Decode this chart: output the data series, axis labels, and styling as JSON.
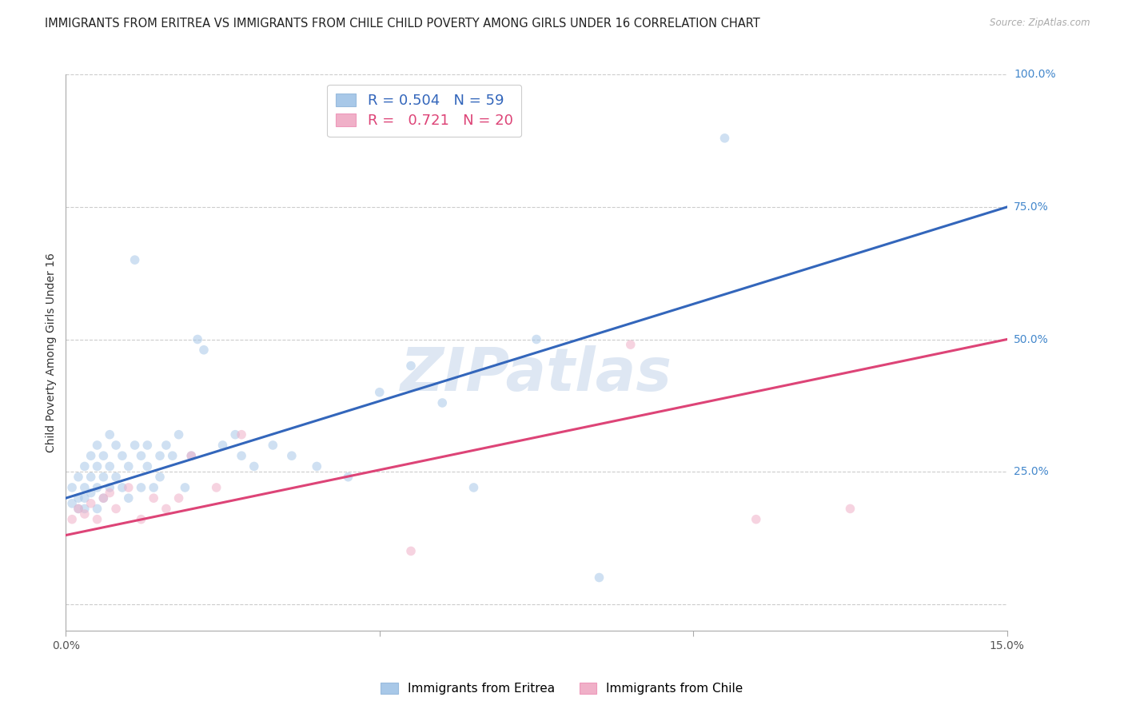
{
  "title": "IMMIGRANTS FROM ERITREA VS IMMIGRANTS FROM CHILE CHILD POVERTY AMONG GIRLS UNDER 16 CORRELATION CHART",
  "source": "Source: ZipAtlas.com",
  "ylabel": "Child Poverty Among Girls Under 16",
  "xlim": [
    0.0,
    0.15
  ],
  "ylim": [
    -0.05,
    1.0
  ],
  "xticks": [
    0.0,
    0.05,
    0.1,
    0.15
  ],
  "xticklabels": [
    "0.0%",
    "",
    "",
    "15.0%"
  ],
  "ytick_vals": [
    0.0,
    0.25,
    0.5,
    0.75,
    1.0
  ],
  "ytick_labels": [
    "",
    "25.0%",
    "50.0%",
    "75.0%",
    "100.0%"
  ],
  "background_color": "#ffffff",
  "watermark": "ZIPatlas",
  "grid_color": "#cccccc",
  "series": [
    {
      "name": "Immigrants from Eritrea",
      "R": 0.504,
      "N": 59,
      "color": "#a8c8e8",
      "line_color": "#3366bb",
      "x": [
        0.001,
        0.001,
        0.002,
        0.002,
        0.002,
        0.003,
        0.003,
        0.003,
        0.003,
        0.004,
        0.004,
        0.004,
        0.005,
        0.005,
        0.005,
        0.005,
        0.006,
        0.006,
        0.006,
        0.007,
        0.007,
        0.007,
        0.008,
        0.008,
        0.009,
        0.009,
        0.01,
        0.01,
        0.011,
        0.011,
        0.012,
        0.012,
        0.013,
        0.013,
        0.014,
        0.015,
        0.015,
        0.016,
        0.017,
        0.018,
        0.019,
        0.02,
        0.021,
        0.022,
        0.025,
        0.027,
        0.028,
        0.03,
        0.033,
        0.036,
        0.04,
        0.045,
        0.05,
        0.055,
        0.06,
        0.065,
        0.075,
        0.085,
        0.105
      ],
      "y": [
        0.22,
        0.19,
        0.24,
        0.2,
        0.18,
        0.26,
        0.22,
        0.2,
        0.18,
        0.28,
        0.24,
        0.21,
        0.3,
        0.26,
        0.22,
        0.18,
        0.28,
        0.24,
        0.2,
        0.32,
        0.26,
        0.22,
        0.3,
        0.24,
        0.28,
        0.22,
        0.26,
        0.2,
        0.3,
        0.65,
        0.28,
        0.22,
        0.3,
        0.26,
        0.22,
        0.28,
        0.24,
        0.3,
        0.28,
        0.32,
        0.22,
        0.28,
        0.5,
        0.48,
        0.3,
        0.32,
        0.28,
        0.26,
        0.3,
        0.28,
        0.26,
        0.24,
        0.4,
        0.45,
        0.38,
        0.22,
        0.5,
        0.05,
        0.88
      ],
      "trendline": {
        "x0": 0.0,
        "x1": 0.15,
        "y0": 0.2,
        "y1": 0.75
      }
    },
    {
      "name": "Immigrants from Chile",
      "R": 0.721,
      "N": 20,
      "color": "#f0b0c8",
      "line_color": "#dd4477",
      "x": [
        0.001,
        0.002,
        0.003,
        0.004,
        0.005,
        0.006,
        0.007,
        0.008,
        0.01,
        0.012,
        0.014,
        0.016,
        0.018,
        0.02,
        0.024,
        0.028,
        0.055,
        0.09,
        0.11,
        0.125
      ],
      "y": [
        0.16,
        0.18,
        0.17,
        0.19,
        0.16,
        0.2,
        0.21,
        0.18,
        0.22,
        0.16,
        0.2,
        0.18,
        0.2,
        0.28,
        0.22,
        0.32,
        0.1,
        0.49,
        0.16,
        0.18
      ],
      "trendline": {
        "x0": 0.0,
        "x1": 0.15,
        "y0": 0.13,
        "y1": 0.5
      }
    }
  ],
  "title_fontsize": 10.5,
  "axis_label_fontsize": 10,
  "tick_fontsize": 10,
  "marker_size": 70,
  "marker_alpha": 0.55,
  "line_width": 2.2
}
